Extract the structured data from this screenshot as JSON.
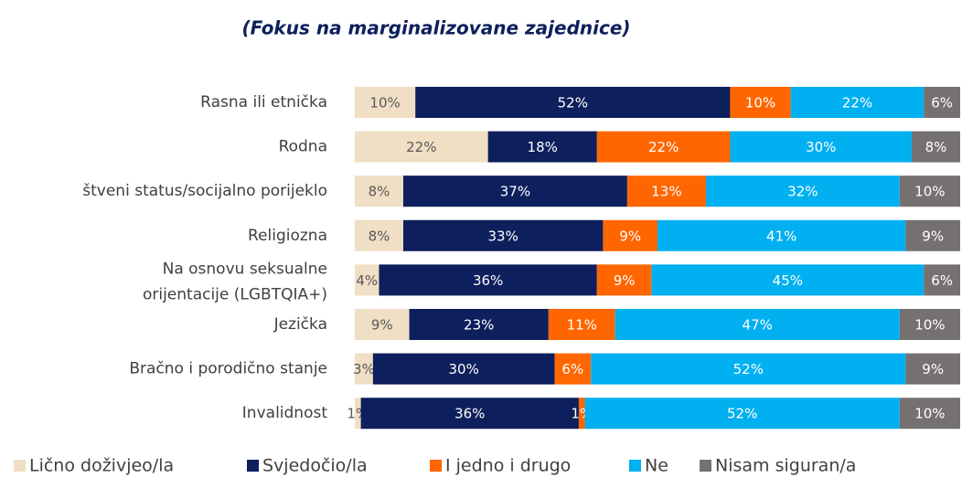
{
  "chart_data": {
    "type": "stacked-bar-horizontal",
    "title": "(Fokus na marginalizovane zajednice)",
    "categories": [
      "Rasna ili etnička",
      "Rodna",
      "štveni status/socijalno porijeklo",
      "Religiozna",
      "Na osnovu seksualne\norijentacije (LGBTQIA+)",
      "Jezička",
      "Bračno i porodično stanje",
      "Invalidnost"
    ],
    "xlim": [
      0,
      100
    ],
    "series": [
      {
        "name": "Lično doživjeo/la",
        "color": "#f0dfc4",
        "values": [
          10,
          22,
          8,
          8,
          4,
          9,
          3,
          1
        ],
        "value_labels": [
          "10%",
          "22%",
          "8%",
          "8%",
          "4%",
          "9%",
          "3%",
          "1%"
        ]
      },
      {
        "name": "Svjedočio/la",
        "color": "#0d1f5c",
        "values": [
          52,
          18,
          37,
          33,
          36,
          23,
          30,
          36
        ],
        "value_labels": [
          "52%",
          "18%",
          "37%",
          "33%",
          "36%",
          "23%",
          "30%",
          "36%"
        ]
      },
      {
        "name": "I jedno i drugo",
        "color": "#ff6600",
        "values": [
          10,
          22,
          13,
          9,
          9,
          11,
          6,
          1
        ],
        "value_labels": [
          "10%",
          "22%",
          "13%",
          "9%",
          "9%",
          "11%",
          "6%",
          "1%"
        ]
      },
      {
        "name": "Ne",
        "color": "#00b0f0",
        "values": [
          22,
          30,
          32,
          41,
          45,
          47,
          52,
          52
        ],
        "value_labels": [
          "22%",
          "30%",
          "32%",
          "41%",
          "45%",
          "47%",
          "52%",
          "52%"
        ]
      },
      {
        "name": "Nisam siguran/a",
        "color": "#767171",
        "values": [
          6,
          8,
          10,
          9,
          6,
          10,
          9,
          10
        ],
        "value_labels": [
          "6%",
          "8%",
          "10%",
          "9%",
          "6%",
          "10%",
          "9%",
          "10%"
        ]
      }
    ],
    "legend": "bottom"
  }
}
